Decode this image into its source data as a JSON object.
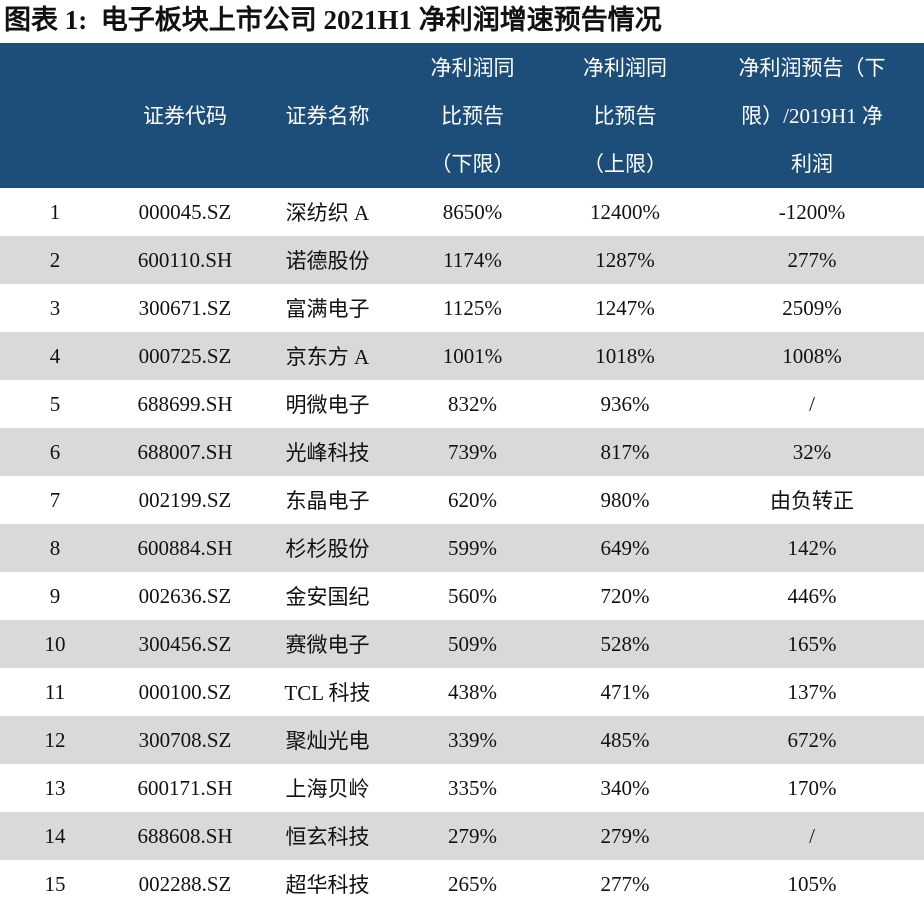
{
  "title": "图表 1:  电子板块上市公司 2021H1 净利润增速预告情况",
  "table": {
    "header": [
      [
        ""
      ],
      [
        "证券代码"
      ],
      [
        "证券名称"
      ],
      [
        "净利润同",
        "比预告",
        "（下限）"
      ],
      [
        "净利润同",
        "比预告",
        "（上限）"
      ],
      [
        "净利润预告（下",
        "限）/2019H1 净",
        "利润"
      ]
    ],
    "rows": [
      [
        "1",
        "000045.SZ",
        "深纺织 A",
        "8650%",
        "12400%",
        "-1200%"
      ],
      [
        "2",
        "600110.SH",
        "诺德股份",
        "1174%",
        "1287%",
        "277%"
      ],
      [
        "3",
        "300671.SZ",
        "富满电子",
        "1125%",
        "1247%",
        "2509%"
      ],
      [
        "4",
        "000725.SZ",
        "京东方 A",
        "1001%",
        "1018%",
        "1008%"
      ],
      [
        "5",
        "688699.SH",
        "明微电子",
        "832%",
        "936%",
        "/"
      ],
      [
        "6",
        "688007.SH",
        "光峰科技",
        "739%",
        "817%",
        "32%"
      ],
      [
        "7",
        "002199.SZ",
        "东晶电子",
        "620%",
        "980%",
        "由负转正"
      ],
      [
        "8",
        "600884.SH",
        "杉杉股份",
        "599%",
        "649%",
        "142%"
      ],
      [
        "9",
        "002636.SZ",
        "金安国纪",
        "560%",
        "720%",
        "446%"
      ],
      [
        "10",
        "300456.SZ",
        "赛微电子",
        "509%",
        "528%",
        "165%"
      ],
      [
        "11",
        "000100.SZ",
        "TCL 科技",
        "438%",
        "471%",
        "137%"
      ],
      [
        "12",
        "300708.SZ",
        "聚灿光电",
        "339%",
        "485%",
        "672%"
      ],
      [
        "13",
        "600171.SH",
        "上海贝岭",
        "335%",
        "340%",
        "170%"
      ],
      [
        "14",
        "688608.SH",
        "恒玄科技",
        "279%",
        "279%",
        "/"
      ],
      [
        "15",
        "002288.SZ",
        "超华科技",
        "265%",
        "277%",
        "105%"
      ]
    ]
  }
}
